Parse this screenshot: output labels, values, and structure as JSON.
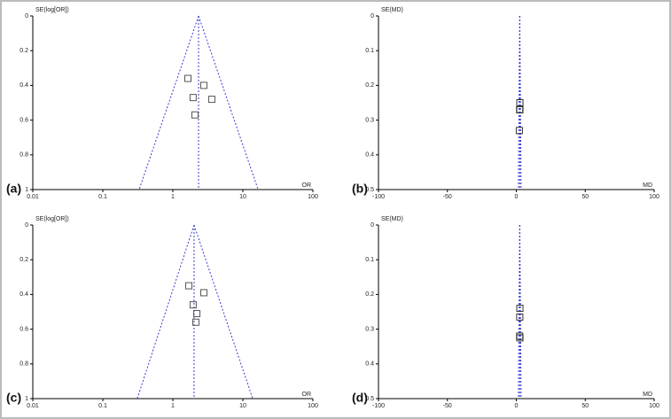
{
  "chart_data": [
    {
      "type": "scatter",
      "label": "(a)",
      "x_label": "OR",
      "y_label": "SE(log[OR])",
      "xscale": "log",
      "y_inverted": true,
      "xlim": [
        0.01,
        100
      ],
      "xticks": [
        0.01,
        0.1,
        1,
        10,
        100
      ],
      "ylim": [
        0,
        1
      ],
      "yticks": [
        0,
        0.2,
        0.4,
        0.6,
        0.8,
        1
      ],
      "x": [
        1.64,
        2.77,
        1.95,
        3.6,
        2.07
      ],
      "values": [
        0.36,
        0.4,
        0.47,
        0.48,
        0.57
      ],
      "center": 2.33,
      "funnel_low": 0.33,
      "funnel_high": 16.5,
      "color": "#555555",
      "funnel_color": "#3b3bd0"
    },
    {
      "type": "scatter",
      "label": "(b)",
      "x_label": "MD",
      "y_label": "SE(MD)",
      "xscale": "linear",
      "y_inverted": true,
      "xlim": [
        -100,
        100
      ],
      "xticks": [
        -100,
        -50,
        0,
        50,
        100
      ],
      "ylim": [
        0,
        0.5
      ],
      "yticks": [
        0,
        0.1,
        0.2,
        0.3,
        0.4,
        0.5
      ],
      "x": [
        2.6,
        2.6,
        2.4,
        2.2
      ],
      "values": [
        0.25,
        0.27,
        0.27,
        0.33
      ],
      "center": 2.5,
      "funnel_low": 1.5,
      "funnel_high": 3.5,
      "color": "#333333",
      "funnel_color": "#3b3bd0"
    },
    {
      "type": "scatter",
      "label": "(c)",
      "x_label": "OR",
      "y_label": "SE(log[OR])",
      "xscale": "log",
      "y_inverted": true,
      "xlim": [
        0.01,
        100
      ],
      "xticks": [
        0.01,
        0.1,
        1,
        10,
        100
      ],
      "ylim": [
        0,
        1
      ],
      "yticks": [
        0,
        0.2,
        0.4,
        0.6,
        0.8,
        1
      ],
      "x": [
        1.69,
        2.77,
        1.95,
        2.2,
        2.13
      ],
      "values": [
        0.35,
        0.39,
        0.46,
        0.51,
        0.56
      ],
      "center": 2.01,
      "funnel_low": 0.31,
      "funnel_high": 13.8,
      "color": "#555555",
      "funnel_color": "#3b3bd0"
    },
    {
      "type": "scatter",
      "label": "(d)",
      "x_label": "MD",
      "y_label": "SE(MD)",
      "xscale": "linear",
      "y_inverted": true,
      "xlim": [
        -100,
        100
      ],
      "xticks": [
        -100,
        -50,
        0,
        50,
        100
      ],
      "ylim": [
        0,
        0.5
      ],
      "yticks": [
        0,
        0.1,
        0.2,
        0.3,
        0.4,
        0.5
      ],
      "x": [
        2.6,
        2.5,
        2.4,
        2.6
      ],
      "values": [
        0.24,
        0.265,
        0.32,
        0.325
      ],
      "center": 2.5,
      "funnel_low": 1.5,
      "funnel_high": 3.5,
      "color": "#333333",
      "funnel_color": "#3b3bd0"
    }
  ]
}
